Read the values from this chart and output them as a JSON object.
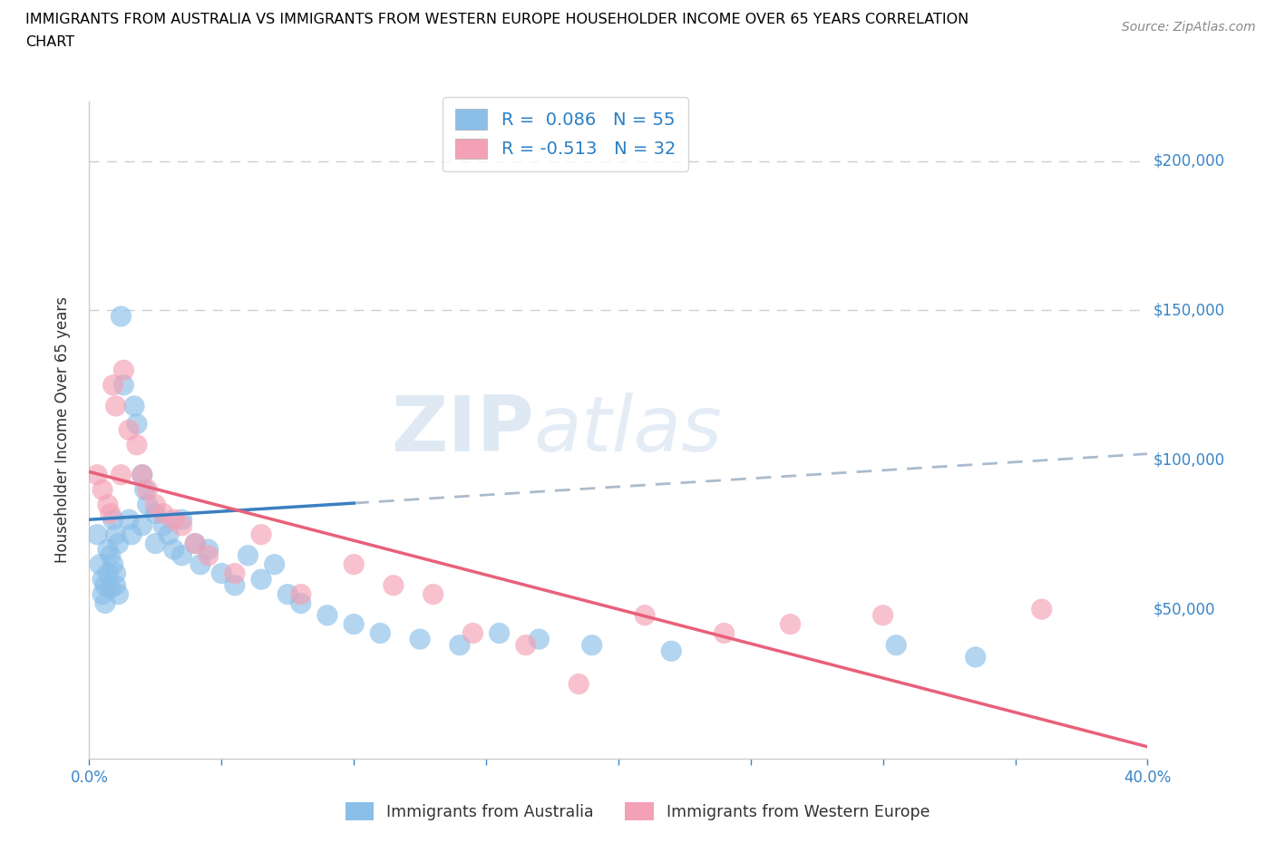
{
  "title_line1": "IMMIGRANTS FROM AUSTRALIA VS IMMIGRANTS FROM WESTERN EUROPE HOUSEHOLDER INCOME OVER 65 YEARS CORRELATION",
  "title_line2": "CHART",
  "source": "Source: ZipAtlas.com",
  "ylabel": "Householder Income Over 65 years",
  "xlim": [
    0.0,
    40.0
  ],
  "ylim": [
    0,
    220000
  ],
  "yticks": [
    0,
    50000,
    100000,
    150000,
    200000
  ],
  "ytick_labels": [
    "",
    "$50,000",
    "$100,000",
    "$150,000",
    "$200,000"
  ],
  "watermark_part1": "ZIP",
  "watermark_part2": "atlas",
  "legend_r1": "R =  0.086   N = 55",
  "legend_r2": "R = -0.513   N = 32",
  "color_australia": "#8bbfe8",
  "color_western_europe": "#f4a0b5",
  "color_trendline_australia": "#3a7fc1",
  "color_trendline_western_europe": "#e8607a",
  "color_dashed": "#aabbcc",
  "label_australia": "Immigrants from Australia",
  "label_western_europe": "Immigrants from Western Europe",
  "aus_trendline_x0": 0.0,
  "aus_trendline_y0": 80000,
  "aus_trendline_slope": 550,
  "weu_trendline_x0": 0.0,
  "weu_trendline_y0": 96000,
  "weu_trendline_slope": -2300,
  "aus_solid_end_x": 10.0,
  "australia_x": [
    0.3,
    0.4,
    0.5,
    0.5,
    0.6,
    0.6,
    0.7,
    0.7,
    0.8,
    0.8,
    0.9,
    0.9,
    1.0,
    1.0,
    1.0,
    1.1,
    1.1,
    1.2,
    1.3,
    1.5,
    1.6,
    1.7,
    1.8,
    2.0,
    2.0,
    2.1,
    2.2,
    2.5,
    2.5,
    2.8,
    3.0,
    3.2,
    3.5,
    3.5,
    4.0,
    4.2,
    4.5,
    5.0,
    5.5,
    6.0,
    6.5,
    7.0,
    7.5,
    8.0,
    9.0,
    10.0,
    11.0,
    12.5,
    14.0,
    15.5,
    17.0,
    19.0,
    22.0,
    30.5,
    33.5
  ],
  "australia_y": [
    75000,
    65000,
    60000,
    55000,
    58000,
    52000,
    70000,
    62000,
    68000,
    57000,
    80000,
    65000,
    75000,
    62000,
    58000,
    72000,
    55000,
    148000,
    125000,
    80000,
    75000,
    118000,
    112000,
    95000,
    78000,
    90000,
    85000,
    82000,
    72000,
    78000,
    75000,
    70000,
    80000,
    68000,
    72000,
    65000,
    70000,
    62000,
    58000,
    68000,
    60000,
    65000,
    55000,
    52000,
    48000,
    45000,
    42000,
    40000,
    38000,
    42000,
    40000,
    38000,
    36000,
    38000,
    34000
  ],
  "western_europe_x": [
    0.3,
    0.5,
    0.7,
    0.8,
    0.9,
    1.0,
    1.2,
    1.3,
    1.5,
    1.8,
    2.0,
    2.2,
    2.5,
    2.8,
    3.2,
    3.5,
    4.0,
    4.5,
    5.5,
    6.5,
    8.0,
    10.0,
    11.5,
    13.0,
    14.5,
    16.5,
    18.5,
    21.0,
    24.0,
    26.5,
    30.0,
    36.0
  ],
  "western_europe_y": [
    95000,
    90000,
    85000,
    82000,
    125000,
    118000,
    95000,
    130000,
    110000,
    105000,
    95000,
    90000,
    85000,
    82000,
    80000,
    78000,
    72000,
    68000,
    62000,
    75000,
    55000,
    65000,
    58000,
    55000,
    42000,
    38000,
    25000,
    48000,
    42000,
    45000,
    48000,
    50000
  ]
}
